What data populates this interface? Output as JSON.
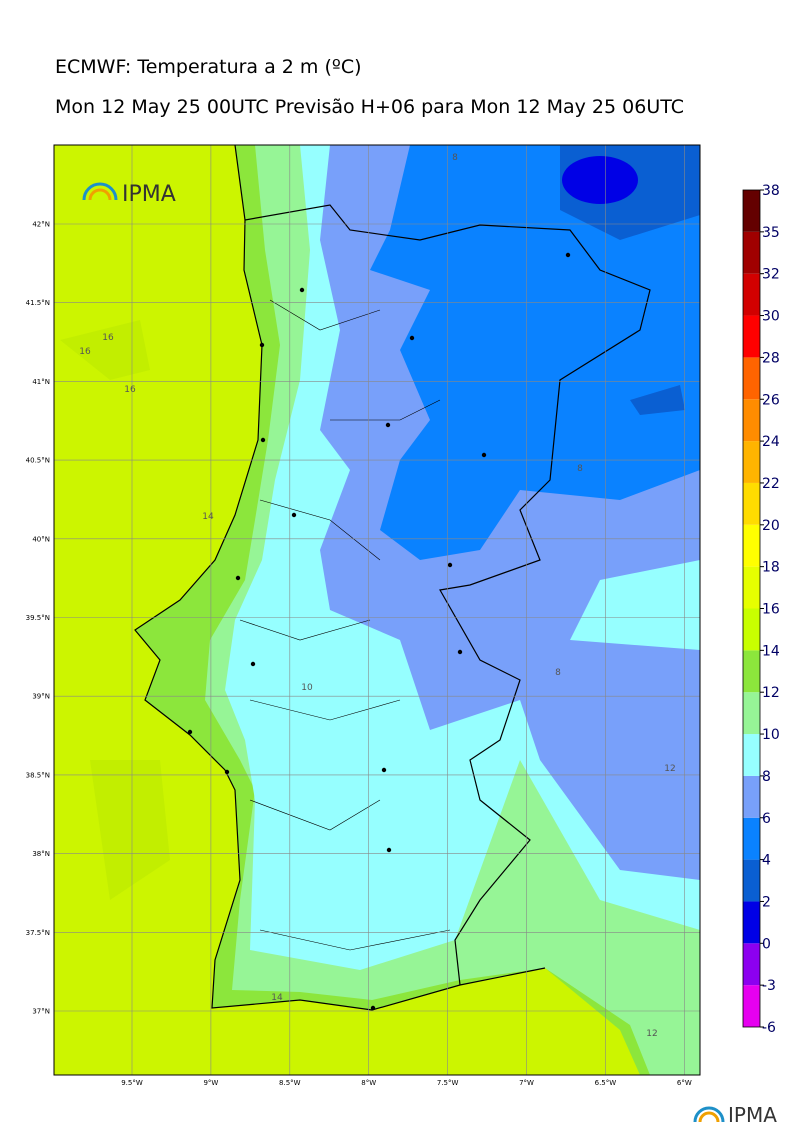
{
  "header": {
    "title": "ECMWF: Temperatura a 2 m (ºC)",
    "subtitle": "Mon 12 May 25 00UTC Previsão H+06 para Mon 12 May 25 06UTC"
  },
  "map": {
    "lat_labels": [
      "42°N",
      "41.5°N",
      "41°N",
      "40.5°N",
      "40°N",
      "39.5°N",
      "39°N",
      "38.5°N",
      "38°N",
      "37.5°N",
      "37°N"
    ],
    "lon_labels": [
      "9.5°W",
      "9°W",
      "8.5°W",
      "8°W",
      "7.5°W",
      "7°W",
      "6.5°W",
      "6°W"
    ],
    "contour_labels": [
      "16",
      "16",
      "16",
      "14",
      "14",
      "10",
      "8",
      "8",
      "8",
      "12",
      "12"
    ]
  },
  "colorbar": {
    "ticks": [
      "-6",
      "-3",
      "0",
      "2",
      "4",
      "6",
      "8",
      "10",
      "12",
      "14",
      "16",
      "18",
      "20",
      "22",
      "24",
      "26",
      "28",
      "30",
      "32",
      "35",
      "38"
    ],
    "colors": [
      "#e600f0",
      "#8c00f0",
      "#0000e6",
      "#0a5fd2",
      "#0a82ff",
      "#78a0fa",
      "#96ffff",
      "#96f596",
      "#8ce63c",
      "#c8ff00",
      "#e6ff00",
      "#ffff00",
      "#ffdc00",
      "#ffb400",
      "#ff8c00",
      "#ff6400",
      "#ff0000",
      "#d20000",
      "#a00000",
      "#640000"
    ]
  },
  "logos": [
    "IPMA",
    "IPMA"
  ]
}
